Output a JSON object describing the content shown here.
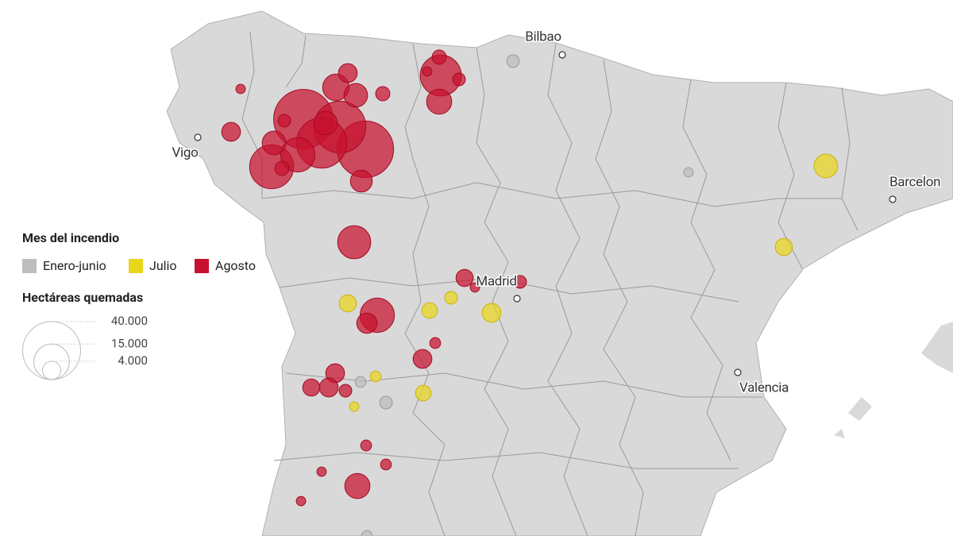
{
  "legend": {
    "color_title": "Mes del incendio",
    "months": [
      {
        "name": "Enero-junio",
        "color": "#bdbdbd"
      },
      {
        "name": "Julio",
        "color": "#e9d51c"
      },
      {
        "name": "Agosto",
        "color": "#c8102e"
      }
    ],
    "size_title": "Hectáreas quemadas",
    "sizes": [
      {
        "value": 40000,
        "label": "40.000"
      },
      {
        "value": 15000,
        "label": "15.000"
      },
      {
        "value": 4000,
        "label": "4.000"
      }
    ]
  },
  "cities": [
    "Bilbao",
    "Vigo",
    "Barcelon",
    "Madrid",
    "Valencia"
  ],
  "fires": [
    {
      "month": "Agosto",
      "hectares": 42000
    },
    {
      "month": "Agosto",
      "hectares": 38000
    },
    {
      "month": "Agosto",
      "hectares": 32000
    },
    {
      "month": "Agosto",
      "hectares": 23000
    },
    {
      "month": "Agosto",
      "hectares": 30000
    },
    {
      "month": "Agosto",
      "hectares": 14000
    },
    {
      "month": "Agosto",
      "hectares": 6600
    },
    {
      "month": "Agosto",
      "hectares": 6600
    },
    {
      "month": "Agosto",
      "hectares": 20000
    },
    {
      "month": "Agosto",
      "hectares": 7500
    },
    {
      "month": "Agosto",
      "hectares": 8400
    },
    {
      "month": "Agosto",
      "hectares": 6600
    },
    {
      "month": "Agosto",
      "hectares": 4200
    },
    {
      "month": "Agosto",
      "hectares": 2400
    },
    {
      "month": "Agosto",
      "hectares": 2400
    },
    {
      "month": "Agosto",
      "hectares": 1900
    },
    {
      "month": "Agosto",
      "hectares": 1050
    },
    {
      "month": "Agosto",
      "hectares": 1050
    },
    {
      "month": "Agosto",
      "hectares": 4200
    },
    {
      "month": "Agosto",
      "hectares": 1900
    },
    {
      "month": "Agosto",
      "hectares": 2400
    },
    {
      "month": "Agosto",
      "hectares": 5700
    },
    {
      "month": "Agosto",
      "hectares": 13000
    },
    {
      "month": "Agosto",
      "hectares": 14000
    },
    {
      "month": "Agosto",
      "hectares": 4900
    },
    {
      "month": "Agosto",
      "hectares": 3500
    },
    {
      "month": "Agosto",
      "hectares": 1900
    },
    {
      "month": "Agosto",
      "hectares": 1050
    },
    {
      "month": "Agosto",
      "hectares": 4200
    },
    {
      "month": "Agosto",
      "hectares": 1400
    },
    {
      "month": "Agosto",
      "hectares": 4200
    },
    {
      "month": "Agosto",
      "hectares": 4200
    },
    {
      "month": "Agosto",
      "hectares": 3500
    },
    {
      "month": "Agosto",
      "hectares": 1900
    },
    {
      "month": "Agosto",
      "hectares": 1400
    },
    {
      "month": "Agosto",
      "hectares": 1400
    },
    {
      "month": "Agosto",
      "hectares": 1050
    },
    {
      "month": "Agosto",
      "hectares": 7500
    },
    {
      "month": "Agosto",
      "hectares": 1050
    },
    {
      "month": "Julio",
      "hectares": 6600
    },
    {
      "month": "Julio",
      "hectares": 3500
    },
    {
      "month": "Julio",
      "hectares": 3500
    },
    {
      "month": "Julio",
      "hectares": 2900
    },
    {
      "month": "Julio",
      "hectares": 1900
    },
    {
      "month": "Julio",
      "hectares": 4200
    },
    {
      "month": "Julio",
      "hectares": 1400
    },
    {
      "month": "Julio",
      "hectares": 2900
    },
    {
      "month": "Julio",
      "hectares": 1050
    },
    {
      "month": "Enero-junio",
      "hectares": 1900
    },
    {
      "month": "Enero-junio",
      "hectares": 1050
    },
    {
      "month": "Enero-junio",
      "hectares": 1400
    },
    {
      "month": "Enero-junio",
      "hectares": 1900
    },
    {
      "month": "Enero-junio",
      "hectares": 1400
    }
  ]
}
